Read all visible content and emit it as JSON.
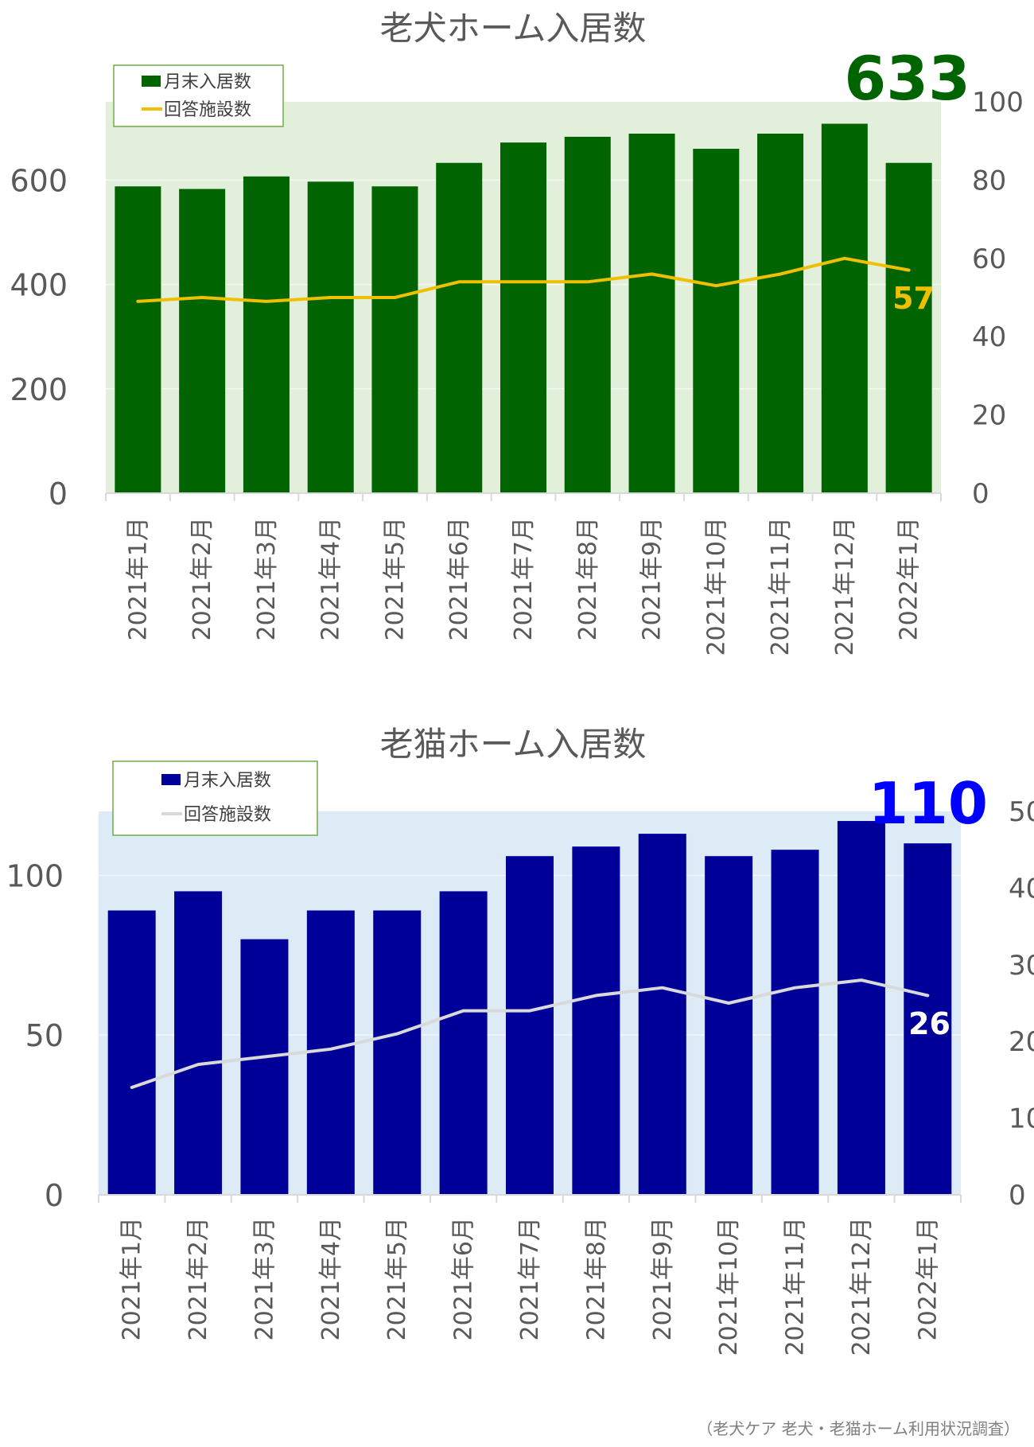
{
  "source_note": "（老犬ケア 老犬・老猫ホーム利用状況調査）",
  "chart_data": [
    {
      "type": "bar",
      "title": "老犬ホーム入居数",
      "categories": [
        "2021年1月",
        "2021年2月",
        "2021年3月",
        "2021年4月",
        "2021年5月",
        "2021年6月",
        "2021年7月",
        "2021年8月",
        "2021年9月",
        "2021年10月",
        "2021年11月",
        "2021年12月",
        "2022年1月"
      ],
      "series": [
        {
          "name": "月末入居数",
          "type": "bar",
          "axis": "left",
          "color": "#006400",
          "values": [
            588,
            583,
            607,
            597,
            588,
            633,
            672,
            683,
            689,
            660,
            689,
            708,
            633
          ]
        },
        {
          "name": "回答施設数",
          "type": "line",
          "axis": "right",
          "color": "#f0c000",
          "values": [
            49,
            50,
            49,
            50,
            50,
            54,
            54,
            54,
            56,
            53,
            56,
            60,
            57
          ]
        }
      ],
      "ylim_left": [
        0,
        750
      ],
      "yticks_left": [
        0,
        200,
        400,
        600
      ],
      "ylim_right": [
        0,
        100
      ],
      "yticks_right": [
        0,
        20,
        40,
        60,
        80,
        100
      ],
      "highlight_bar_label": "633",
      "highlight_line_label": "57",
      "plot_bg": "#e2efda",
      "legend": "top-left"
    },
    {
      "type": "bar",
      "title": "老猫ホーム入居数",
      "categories": [
        "2021年1月",
        "2021年2月",
        "2021年3月",
        "2021年4月",
        "2021年5月",
        "2021年6月",
        "2021年7月",
        "2021年8月",
        "2021年9月",
        "2021年10月",
        "2021年11月",
        "2021年12月",
        "2022年1月"
      ],
      "series": [
        {
          "name": "月末入居数",
          "type": "bar",
          "axis": "left",
          "color": "#000099",
          "values": [
            89,
            95,
            80,
            89,
            89,
            95,
            106,
            109,
            113,
            106,
            108,
            117,
            110
          ]
        },
        {
          "name": "回答施設数",
          "type": "line",
          "axis": "right",
          "color": "#d9d9d9",
          "values": [
            14,
            17,
            18,
            19,
            21,
            24,
            24,
            26,
            27,
            25,
            27,
            28,
            26
          ]
        }
      ],
      "ylim_left": [
        0,
        120
      ],
      "yticks_left": [
        0,
        50,
        100
      ],
      "ylim_right": [
        0,
        50
      ],
      "yticks_right": [
        0,
        10,
        20,
        30,
        40,
        50
      ],
      "highlight_bar_label": "110",
      "highlight_line_label": "26",
      "plot_bg": "#ddebf7",
      "legend": "top-left"
    }
  ]
}
